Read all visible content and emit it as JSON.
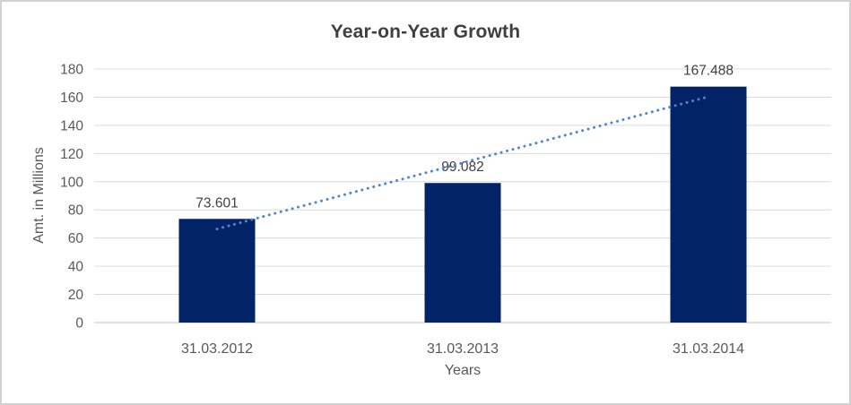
{
  "chart_data": {
    "type": "bar",
    "title": "Year-on-Year Growth",
    "xlabel": "Years",
    "ylabel": "Amt. in Millions",
    "categories": [
      "31.03.2012",
      "31.03.2013",
      "31.03.2014"
    ],
    "values": [
      73.601,
      99.082,
      167.488
    ],
    "data_labels": [
      "73.601",
      "99.082",
      "167.488"
    ],
    "yticks": [
      0,
      20,
      40,
      60,
      80,
      100,
      120,
      140,
      160,
      180
    ],
    "ylim": [
      0,
      180
    ],
    "grid": true,
    "legend": "none",
    "trendline": {
      "type": "linear",
      "style": "dotted"
    },
    "colors": {
      "bar": "#022366",
      "trendline": "#4e87ce",
      "gridline": "#d9d9d9",
      "axis_line": "#bfbfbf",
      "tick_text": "#595959",
      "data_label_text": "#404040",
      "title_text": "#3f3f3f",
      "border": "#d2d2d2"
    }
  }
}
